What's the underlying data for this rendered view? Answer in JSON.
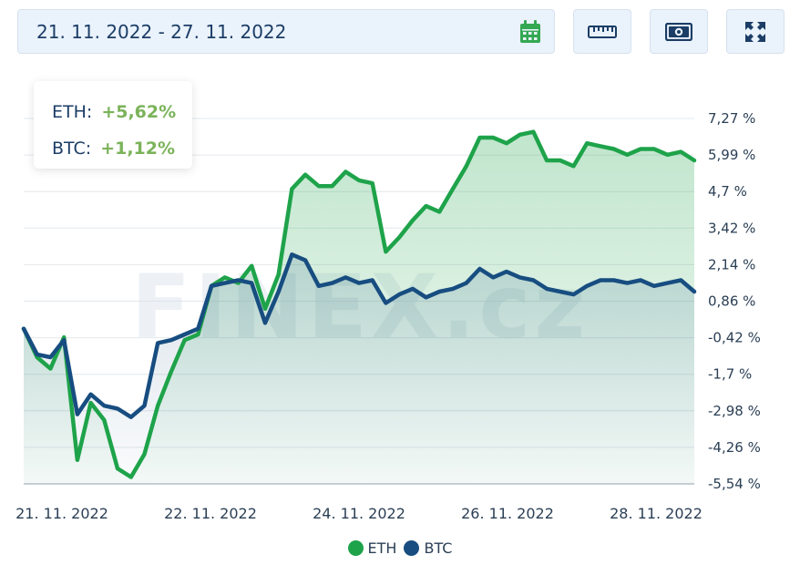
{
  "date_range": {
    "value": "21. 11. 2022 - 27. 11. 2022",
    "icon": "calendar-icon"
  },
  "toolbar": {
    "buttons": [
      {
        "icon": "ruler-icon"
      },
      {
        "icon": "banknote-icon"
      },
      {
        "icon": "fullscreen-icon"
      }
    ]
  },
  "tooltip": {
    "rows": [
      {
        "label": "ETH:",
        "value": "+5,62%"
      },
      {
        "label": "BTC:",
        "value": "+1,12%"
      }
    ]
  },
  "watermark": "FINEX.cz",
  "colors": {
    "eth": "#1ea34a",
    "btc": "#174d80",
    "tooltip_value": "#7bb35a",
    "accent_calendar": "#34a853"
  },
  "chart_data": {
    "type": "line",
    "x_ticks": [
      "21. 11. 2022",
      "22. 11. 2022",
      "24. 11. 2022",
      "26. 11. 2022",
      "28. 11. 2022"
    ],
    "y_ticks": [
      "7,27 %",
      "5,99 %",
      "4,7 %",
      "3,42 %",
      "2,14 %",
      "0,86 %",
      "-0,42 %",
      "-1,7 %",
      "-2,98 %",
      "-4,26 %",
      "-5,54 %"
    ],
    "ylim": [
      -5.54,
      7.27
    ],
    "y_axis_position": "right",
    "grid": true,
    "legend_position": "bottom",
    "x": [
      0,
      2,
      4,
      6,
      8,
      10,
      12,
      14,
      16,
      18,
      20,
      22,
      24,
      26,
      28,
      30,
      32,
      34,
      36,
      38,
      40,
      42,
      44,
      46,
      48,
      50,
      52,
      54,
      56,
      58,
      60,
      62,
      64,
      66,
      68,
      70,
      72,
      74,
      76,
      78,
      80,
      82,
      84,
      86,
      88,
      90,
      92,
      94,
      96,
      98,
      100
    ],
    "series": [
      {
        "name": "ETH",
        "values": [
          -0.1,
          -1.1,
          -1.5,
          -0.4,
          -4.7,
          -2.7,
          -3.3,
          -5.0,
          -5.3,
          -4.5,
          -2.8,
          -1.6,
          -0.5,
          -0.3,
          1.4,
          1.7,
          1.5,
          2.1,
          0.6,
          1.8,
          4.8,
          5.3,
          4.9,
          4.9,
          5.4,
          5.1,
          5.0,
          2.6,
          3.1,
          3.7,
          4.2,
          4.0,
          4.8,
          5.6,
          6.6,
          6.6,
          6.4,
          6.7,
          6.8,
          5.8,
          5.8,
          5.6,
          6.4,
          6.3,
          6.2,
          6.0,
          6.2,
          6.2,
          6.0,
          6.1,
          5.8
        ],
        "color": "#1ea34a"
      },
      {
        "name": "BTC",
        "values": [
          -0.1,
          -1.0,
          -1.1,
          -0.5,
          -3.1,
          -2.4,
          -2.8,
          -2.9,
          -3.2,
          -2.8,
          -0.6,
          -0.5,
          -0.3,
          -0.1,
          1.4,
          1.5,
          1.6,
          1.5,
          0.1,
          1.2,
          2.5,
          2.3,
          1.4,
          1.5,
          1.7,
          1.5,
          1.6,
          0.8,
          1.1,
          1.3,
          1.0,
          1.2,
          1.3,
          1.5,
          2.0,
          1.7,
          1.9,
          1.7,
          1.6,
          1.3,
          1.2,
          1.1,
          1.4,
          1.6,
          1.6,
          1.5,
          1.6,
          1.4,
          1.5,
          1.6,
          1.2
        ],
        "color": "#174d80"
      }
    ]
  }
}
